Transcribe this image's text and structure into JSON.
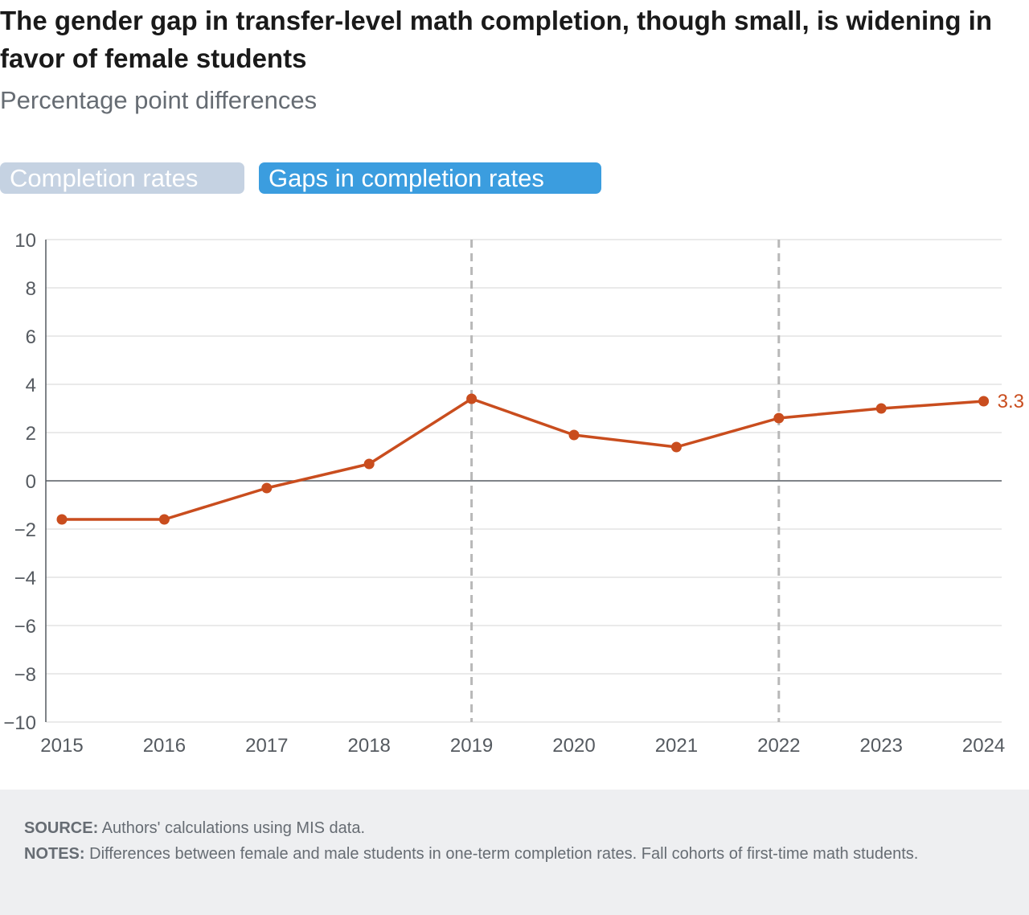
{
  "title": "The gender gap in transfer-level math completion, though small, is widening in favor of female students",
  "subtitle": "Percentage point differences",
  "tabs": [
    {
      "label": "Completion rates",
      "active": false
    },
    {
      "label": "Gaps in completion rates",
      "active": true
    }
  ],
  "colors": {
    "series": "#c94d1e",
    "tab_active": "#3b9ddf",
    "tab_inactive": "#c5d2e2",
    "grid": "#e3e3e3",
    "footer_bg": "#eeeff1"
  },
  "chart_data": {
    "type": "line",
    "x": [
      "2015",
      "2016",
      "2017",
      "2018",
      "2019",
      "2020",
      "2021",
      "2022",
      "2023",
      "2024"
    ],
    "series": [
      {
        "values": [
          -1.6,
          -1.6,
          -0.3,
          0.7,
          3.4,
          1.9,
          1.4,
          2.6,
          3.0,
          3.3
        ]
      }
    ],
    "end_label": "3.3",
    "ylim": [
      -10,
      10
    ],
    "yticks": [
      10,
      8,
      6,
      4,
      2,
      0,
      -2,
      -4,
      -6,
      -8,
      -10
    ],
    "ytick_labels": [
      "10",
      "8",
      "6",
      "4",
      "2",
      "0",
      "−2",
      "−4",
      "−6",
      "−8",
      "−10"
    ],
    "reference_lines_at": [
      "2019",
      "2022"
    ],
    "grid": true,
    "xlabel": "",
    "ylabel": ""
  },
  "footer": {
    "source_key": "SOURCE:",
    "source_text": " Authors' calculations using MIS data.",
    "notes_key": "NOTES:",
    "notes_text": " Differences between female and male students in one-term completion rates. Fall cohorts of first-time math students."
  }
}
